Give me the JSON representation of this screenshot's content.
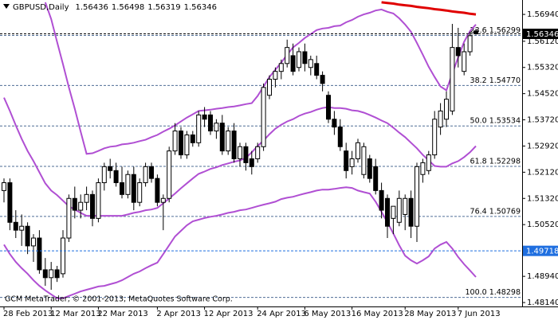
{
  "chart_data": {
    "type": "candlestick",
    "title": "GBPUSD,Daily",
    "copyright": "GCM MetaTrader, © 2001-2013, MetaQuotes Software Corp.",
    "categories": [
      "28 Feb 2013",
      null,
      null,
      null,
      null,
      null,
      null,
      null,
      "12 Mar 2013",
      null,
      null,
      null,
      null,
      null,
      null,
      null,
      "22 Mar 2013",
      null,
      null,
      null,
      null,
      null,
      null,
      null,
      null,
      null,
      "2 Apr 2013",
      null,
      null,
      null,
      null,
      null,
      null,
      null,
      "12 Apr 2013",
      null,
      null,
      null,
      null,
      null,
      null,
      null,
      null,
      "24 Apr 2013",
      null,
      null,
      null,
      null,
      null,
      null,
      null,
      "6 May 2013",
      null,
      null,
      null,
      null,
      null,
      null,
      null,
      "16 May 2013",
      null,
      null,
      null,
      null,
      null,
      null,
      null,
      null,
      "28 May 2013",
      null,
      null,
      null,
      null,
      null,
      null,
      null,
      null,
      "7 Jun 2013",
      null,
      null,
      null
    ],
    "candles": [
      [
        1.5156,
        1.5193,
        1.512,
        1.518
      ],
      [
        1.518,
        1.5193,
        1.5035,
        1.5059
      ],
      [
        1.5059,
        1.5096,
        1.5011,
        1.5035
      ],
      [
        1.5035,
        1.5083,
        1.4987,
        1.5047
      ],
      [
        1.5047,
        1.5059,
        1.4962,
        1.4987
      ],
      [
        1.4987,
        1.5023,
        1.4938,
        1.5011
      ],
      [
        1.5011,
        1.5035,
        1.4902,
        1.4914
      ],
      [
        1.4914,
        1.495,
        1.4865,
        1.489
      ],
      [
        1.489,
        1.4938,
        1.4853,
        1.4914
      ],
      [
        1.4914,
        1.4926,
        1.4877,
        1.489
      ],
      [
        1.4902,
        1.5035,
        1.489,
        1.5011
      ],
      [
        1.5011,
        1.5144,
        1.4999,
        1.5132
      ],
      [
        1.5132,
        1.5168,
        1.5071,
        1.5096
      ],
      [
        1.5096,
        1.5144,
        1.5071,
        1.512
      ],
      [
        1.512,
        1.5168,
        1.5096,
        1.5144
      ],
      [
        1.5144,
        1.5156,
        1.5047,
        1.5071
      ],
      [
        1.5071,
        1.5193,
        1.5059,
        1.518
      ],
      [
        1.518,
        1.5241,
        1.5156,
        1.5229
      ],
      [
        1.5229,
        1.5253,
        1.5193,
        1.5217
      ],
      [
        1.5217,
        1.5241,
        1.5168,
        1.518
      ],
      [
        1.518,
        1.5229,
        1.5132,
        1.5144
      ],
      [
        1.5144,
        1.5217,
        1.5132,
        1.5205
      ],
      [
        1.5205,
        1.5229,
        1.5096,
        1.512
      ],
      [
        1.512,
        1.5193,
        1.5108,
        1.518
      ],
      [
        1.518,
        1.5241,
        1.5168,
        1.5229
      ],
      [
        1.5229,
        1.5241,
        1.518,
        1.5193
      ],
      [
        1.5193,
        1.5205,
        1.5108,
        1.512
      ],
      [
        1.512,
        1.5144,
        1.5035,
        1.5132
      ],
      [
        1.5132,
        1.529,
        1.512,
        1.5277
      ],
      [
        1.5277,
        1.5362,
        1.5265,
        1.5338
      ],
      [
        1.5338,
        1.535,
        1.5253,
        1.5265
      ],
      [
        1.5265,
        1.5338,
        1.5253,
        1.5326
      ],
      [
        1.5326,
        1.5338,
        1.529,
        1.5302
      ],
      [
        1.5302,
        1.5399,
        1.529,
        1.5387
      ],
      [
        1.5387,
        1.5411,
        1.535,
        1.5374
      ],
      [
        1.5387,
        1.5399,
        1.5326,
        1.5338
      ],
      [
        1.5338,
        1.5374,
        1.5314,
        1.5362
      ],
      [
        1.5362,
        1.5387,
        1.5265,
        1.5277
      ],
      [
        1.5277,
        1.535,
        1.5265,
        1.5338
      ],
      [
        1.5338,
        1.5362,
        1.5241,
        1.5253
      ],
      [
        1.5253,
        1.5302,
        1.5229,
        1.529
      ],
      [
        1.529,
        1.5302,
        1.5217,
        1.5241
      ],
      [
        1.5253,
        1.5277,
        1.5205,
        1.5229
      ],
      [
        1.5253,
        1.5302,
        1.5241,
        1.529
      ],
      [
        1.529,
        1.5483,
        1.5277,
        1.5471
      ],
      [
        1.5447,
        1.5508,
        1.5435,
        1.5496
      ],
      [
        1.5496,
        1.5532,
        1.5471,
        1.552
      ],
      [
        1.552,
        1.5556,
        1.5496,
        1.5544
      ],
      [
        1.5544,
        1.5617,
        1.5532,
        1.5593
      ],
      [
        1.5568,
        1.5605,
        1.5508,
        1.552
      ],
      [
        1.5532,
        1.5593,
        1.552,
        1.558
      ],
      [
        1.558,
        1.5605,
        1.552,
        1.5544
      ],
      [
        1.5532,
        1.5568,
        1.5508,
        1.5556
      ],
      [
        1.5544,
        1.5568,
        1.5496,
        1.5508
      ],
      [
        1.5508,
        1.552,
        1.5459,
        1.5483
      ],
      [
        1.5447,
        1.5459,
        1.5362,
        1.5374
      ],
      [
        1.5374,
        1.5399,
        1.5326,
        1.535
      ],
      [
        1.535,
        1.5374,
        1.5277,
        1.529
      ],
      [
        1.5277,
        1.5302,
        1.5193,
        1.5217
      ],
      [
        1.5229,
        1.5277,
        1.5205,
        1.5253
      ],
      [
        1.5253,
        1.5314,
        1.5241,
        1.5302
      ],
      [
        1.5205,
        1.5302,
        1.5193,
        1.529
      ],
      [
        1.5253,
        1.5265,
        1.518,
        1.5193
      ],
      [
        1.5229,
        1.5253,
        1.5144,
        1.5156
      ],
      [
        1.5156,
        1.518,
        1.5071,
        1.5096
      ],
      [
        1.5132,
        1.5144,
        1.5011,
        1.5047
      ],
      [
        1.5071,
        1.5108,
        1.5023,
        1.5108
      ],
      [
        1.5059,
        1.5156,
        1.5047,
        1.5132
      ],
      [
        1.5083,
        1.5144,
        1.5035,
        1.5132
      ],
      [
        1.5132,
        1.5156,
        1.5011,
        1.5047
      ],
      [
        1.5047,
        1.5241,
        1.4999,
        1.5229
      ],
      [
        1.5205,
        1.5253,
        1.518,
        1.5241
      ],
      [
        1.5217,
        1.5277,
        1.5205,
        1.5265
      ],
      [
        1.5265,
        1.5399,
        1.5253,
        1.5374
      ],
      [
        1.535,
        1.5423,
        1.5326,
        1.5399
      ],
      [
        1.5374,
        1.5459,
        1.535,
        1.5435
      ],
      [
        1.5399,
        1.5665,
        1.5387,
        1.5593
      ],
      [
        1.5593,
        1.5653,
        1.5532,
        1.5568
      ],
      [
        1.552,
        1.5605,
        1.5508,
        1.558
      ],
      [
        1.558,
        1.5641,
        1.5568,
        1.5629
      ],
      [
        1.56436,
        1.56498,
        1.56319,
        1.56346
      ]
    ],
    "up_color": "#ffffff",
    "down_color": "#000000",
    "indicators": [
      {
        "color": "#b04fd3",
        "values": [
          null,
          null,
          null,
          null,
          null,
          null,
          null,
          1.5731,
          1.568,
          1.561,
          1.5542,
          1.5471,
          1.5406,
          1.5336,
          1.5268,
          1.527,
          1.5277,
          1.5285,
          1.529,
          1.5292,
          1.5297,
          1.5299,
          1.5302,
          1.5307,
          1.5311,
          1.5319,
          1.5326,
          1.5336,
          1.5345,
          1.5355,
          1.5367,
          1.5379,
          1.5389,
          1.5399,
          1.5401,
          1.5403,
          1.5406,
          1.5408,
          1.5411,
          1.5413,
          1.5416,
          1.542,
          1.5423,
          1.5445,
          1.5474,
          1.5503,
          1.5525,
          1.5547,
          1.5571,
          1.5593,
          1.5607,
          1.5622,
          1.5634,
          1.5646,
          1.5651,
          1.5653,
          1.5658,
          1.566,
          1.567,
          1.5677,
          1.5687,
          1.5694,
          1.5699,
          1.5706,
          1.5709,
          1.5702,
          1.5697,
          1.5682,
          1.5663,
          1.5641,
          1.5607,
          1.5571,
          1.5534,
          1.5503,
          1.5474,
          1.5462,
          1.5513,
          1.5563,
          1.561,
          1.5643,
          1.5663
        ]
      },
      {
        "color": "#b04fd3",
        "values": [
          1.544,
          1.5399,
          1.5355,
          1.5314,
          1.5277,
          1.5246,
          1.5212,
          1.5178,
          1.5156,
          1.5142,
          1.5125,
          1.5108,
          1.5098,
          1.5088,
          1.5079,
          1.5079,
          1.5079,
          1.5079,
          1.5079,
          1.5079,
          1.5079,
          1.5083,
          1.5088,
          1.5091,
          1.5096,
          1.5098,
          1.5103,
          1.5117,
          1.5132,
          1.5147,
          1.5163,
          1.5178,
          1.5193,
          1.5207,
          1.5214,
          1.5222,
          1.5227,
          1.5234,
          1.5239,
          1.5244,
          1.5248,
          1.5256,
          1.5273,
          1.5292,
          1.5309,
          1.5328,
          1.5345,
          1.5357,
          1.5367,
          1.5374,
          1.5384,
          1.5391,
          1.5396,
          1.5403,
          1.5408,
          1.5411,
          1.5408,
          1.5408,
          1.5406,
          1.5401,
          1.5399,
          1.5394,
          1.5387,
          1.5379,
          1.537,
          1.5362,
          1.5348,
          1.5333,
          1.5319,
          1.5302,
          1.5285,
          1.5265,
          1.5248,
          1.5231,
          1.5229,
          1.5229,
          1.5239,
          1.5246,
          1.5258,
          1.5273,
          1.5292
        ]
      },
      {
        "color": "#b04fd3",
        "values": [
          1.4991,
          1.4962,
          1.4938,
          1.4919,
          1.4902,
          1.4882,
          1.4865,
          1.4851,
          1.4839,
          1.4827,
          1.4827,
          1.4834,
          1.4841,
          1.4848,
          1.4853,
          1.4858,
          1.4863,
          1.4865,
          1.487,
          1.4875,
          1.4882,
          1.4892,
          1.4902,
          1.4909,
          1.4919,
          1.4928,
          1.4936,
          1.4962,
          1.4989,
          1.5016,
          1.5033,
          1.505,
          1.5062,
          1.5067,
          1.5072,
          1.5076,
          1.5079,
          1.5083,
          1.5088,
          1.5091,
          1.5096,
          1.5098,
          1.5103,
          1.5108,
          1.5113,
          1.5117,
          1.5122,
          1.513,
          1.5134,
          1.5137,
          1.5142,
          1.5147,
          1.5151,
          1.5156,
          1.5159,
          1.5159,
          1.5161,
          1.5164,
          1.5166,
          1.5164,
          1.5156,
          1.5151,
          1.5147,
          1.5122,
          1.5091,
          1.5059,
          1.5025,
          1.4989,
          1.4957,
          1.4943,
          1.4933,
          1.4943,
          1.4955,
          1.4979,
          1.4991,
          1.4999,
          1.4979,
          1.4953,
          1.4931,
          1.4912,
          1.4892
        ]
      },
      {
        "color": "#e00000",
        "width": 3,
        "values": [
          null,
          null,
          null,
          null,
          null,
          null,
          null,
          null,
          null,
          null,
          null,
          null,
          null,
          null,
          null,
          null,
          null,
          null,
          null,
          null,
          null,
          null,
          null,
          null,
          null,
          null,
          null,
          null,
          null,
          null,
          null,
          null,
          null,
          null,
          null,
          null,
          null,
          null,
          null,
          null,
          null,
          null,
          null,
          null,
          null,
          null,
          null,
          null,
          null,
          null,
          null,
          null,
          null,
          null,
          null,
          null,
          null,
          null,
          null,
          null,
          null,
          null,
          null,
          null,
          1.5731,
          1.5729,
          1.5727,
          1.5724,
          1.5722,
          1.572,
          1.5717,
          1.5715,
          1.5713,
          1.571,
          1.5708,
          1.5706,
          1.5703,
          1.5701,
          1.5699,
          1.5696,
          1.5694
        ]
      }
    ],
    "levels": [
      {
        "value": 1.56299,
        "label": "23.6 1.56299"
      },
      {
        "value": 1.5477,
        "label": "38.2 1.54770"
      },
      {
        "value": 1.53534,
        "label": "50.0 1.53534"
      },
      {
        "value": 1.52298,
        "label": "61.8 1.52298"
      },
      {
        "value": 1.50769,
        "label": "76.4 1.50769"
      },
      {
        "value": 1.48298,
        "label": "100.0 1.48298"
      }
    ],
    "level_color": "#4f6d96",
    "price_lines": [
      {
        "value": 1.49718,
        "color": "#1f6fe0"
      },
      {
        "value": 1.56346,
        "color": "#000000"
      }
    ],
    "ylim": [
      1.4802,
      1.5738
    ],
    "yticks": [
      {
        "value": 1.5694,
        "label": "1.56940"
      },
      {
        "value": 1.5612,
        "label": "1.56120"
      },
      {
        "value": 1.5532,
        "label": "1.55320"
      },
      {
        "value": 1.5452,
        "label": "1.54520"
      },
      {
        "value": 1.5372,
        "label": "1.53720"
      },
      {
        "value": 1.5292,
        "label": "1.52920"
      },
      {
        "value": 1.5212,
        "label": "1.52120"
      },
      {
        "value": 1.5132,
        "label": "1.51320"
      },
      {
        "value": 1.5052,
        "label": "1.50520"
      },
      {
        "value": 1.4894,
        "label": "1.48940"
      },
      {
        "value": 1.4814,
        "label": "1.48140"
      }
    ]
  }
}
